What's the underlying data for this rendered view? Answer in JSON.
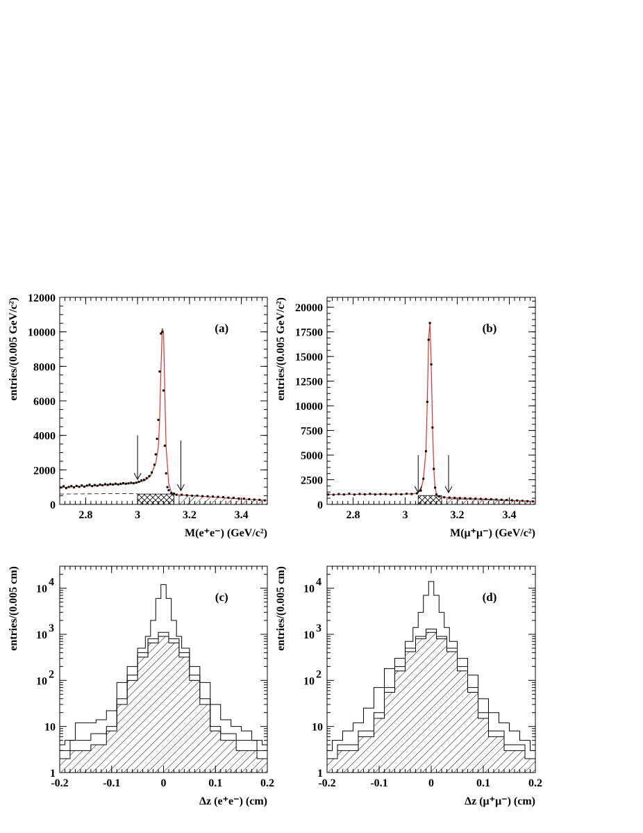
{
  "chart_data": [
    {
      "type": "line",
      "panel_label": "(a)",
      "xlabel": "M(e⁺e⁻) (GeV/c²)",
      "ylabel": "entries/(0.005 GeV/c²)",
      "xlim": [
        2.7,
        3.5
      ],
      "ylim": [
        0,
        12000
      ],
      "xticks": [
        "2.8",
        "3",
        "3.2",
        "3.4"
      ],
      "yticks": [
        "0",
        "2000",
        "4000",
        "6000",
        "8000",
        "10000",
        "12000"
      ],
      "signal_window": [
        3.0,
        3.14
      ],
      "peak_mass": 3.097,
      "background_tail": {
        "x": [
          2.7,
          2.9,
          3.0,
          3.14,
          3.3,
          3.5
        ],
        "y": [
          600,
          620,
          630,
          560,
          420,
          230
        ]
      },
      "fit_curve": {
        "x": [
          2.7,
          2.75,
          2.8,
          2.85,
          2.9,
          2.95,
          3.0,
          3.03,
          3.05,
          3.07,
          3.08,
          3.085,
          3.09,
          3.095,
          3.1,
          3.105,
          3.11,
          3.12,
          3.13,
          3.15,
          3.2,
          3.3,
          3.4,
          3.5
        ],
        "y": [
          980,
          1020,
          1060,
          1100,
          1140,
          1180,
          1250,
          1400,
          1650,
          2400,
          3300,
          4900,
          7800,
          10200,
          10000,
          6500,
          3300,
          1200,
          700,
          560,
          520,
          420,
          310,
          230
        ]
      },
      "points": {
        "x": [
          2.705,
          2.715,
          2.725,
          2.735,
          2.745,
          2.755,
          2.765,
          2.775,
          2.785,
          2.795,
          2.805,
          2.815,
          2.825,
          2.835,
          2.845,
          2.855,
          2.865,
          2.875,
          2.885,
          2.895,
          2.905,
          2.915,
          2.925,
          2.935,
          2.945,
          2.955,
          2.965,
          2.975,
          2.985,
          2.995,
          3.005,
          3.015,
          3.025,
          3.035,
          3.045,
          3.055,
          3.065,
          3.07,
          3.075,
          3.08,
          3.085,
          3.09,
          3.095,
          3.1,
          3.105,
          3.11,
          3.115,
          3.12,
          3.13,
          3.14,
          3.15,
          3.17,
          3.19,
          3.21,
          3.23,
          3.25,
          3.27,
          3.29,
          3.31,
          3.33,
          3.35,
          3.37,
          3.39,
          3.41,
          3.43,
          3.45,
          3.47,
          3.49
        ],
        "y": [
          980,
          1050,
          940,
          1010,
          1060,
          990,
          1070,
          1020,
          1100,
          1030,
          1090,
          1140,
          1060,
          1120,
          1080,
          1150,
          1110,
          1170,
          1130,
          1180,
          1150,
          1200,
          1160,
          1190,
          1230,
          1200,
          1220,
          1250,
          1230,
          1260,
          1310,
          1390,
          1420,
          1520,
          1640,
          1850,
          2300,
          2900,
          3800,
          4900,
          7700,
          9900,
          10000,
          6600,
          3400,
          1800,
          1000,
          820,
          650,
          620,
          560,
          560,
          530,
          500,
          510,
          480,
          470,
          450,
          440,
          420,
          390,
          380,
          340,
          330,
          300,
          280,
          260,
          230
        ]
      }
    },
    {
      "type": "line",
      "panel_label": "(b)",
      "xlabel": "M(μ⁺μ⁻) (GeV/c²)",
      "ylabel": "entries/(0.005 GeV/c²)",
      "xlim": [
        2.7,
        3.5
      ],
      "ylim": [
        0,
        21000
      ],
      "xticks": [
        "2.8",
        "3",
        "3.2",
        "3.4"
      ],
      "yticks": [
        "0",
        "2500",
        "5000",
        "7500",
        "10000",
        "12500",
        "15000",
        "17500",
        "20000"
      ],
      "signal_window": [
        3.05,
        3.14
      ],
      "peak_mass": 3.097,
      "fit_curve": {
        "x": [
          2.7,
          2.8,
          2.9,
          3.0,
          3.04,
          3.06,
          3.07,
          3.08,
          3.085,
          3.09,
          3.095,
          3.1,
          3.105,
          3.11,
          3.115,
          3.12,
          3.13,
          3.15,
          3.2,
          3.3,
          3.4,
          3.5
        ],
        "y": [
          1000,
          1020,
          1030,
          1040,
          1100,
          1400,
          2600,
          5500,
          10500,
          16800,
          18400,
          14300,
          8000,
          3600,
          1700,
          1000,
          800,
          700,
          650,
          550,
          420,
          300
        ]
      },
      "points": {
        "x": [
          2.705,
          2.725,
          2.745,
          2.765,
          2.785,
          2.805,
          2.825,
          2.845,
          2.865,
          2.885,
          2.905,
          2.925,
          2.945,
          2.965,
          2.985,
          3.005,
          3.025,
          3.045,
          3.06,
          3.07,
          3.08,
          3.085,
          3.09,
          3.095,
          3.1,
          3.105,
          3.11,
          3.115,
          3.12,
          3.13,
          3.15,
          3.17,
          3.19,
          3.21,
          3.23,
          3.25,
          3.27,
          3.29,
          3.31,
          3.33,
          3.35,
          3.37,
          3.39,
          3.41,
          3.43,
          3.45,
          3.47,
          3.49
        ],
        "y": [
          1000,
          980,
          1050,
          1010,
          1080,
          1000,
          1060,
          1020,
          1070,
          1010,
          1040,
          1050,
          990,
          1060,
          1020,
          1080,
          1050,
          1120,
          1400,
          2600,
          5400,
          10400,
          16700,
          18400,
          14200,
          7800,
          3600,
          1700,
          1000,
          800,
          720,
          690,
          660,
          640,
          620,
          600,
          580,
          560,
          540,
          520,
          500,
          470,
          440,
          420,
          390,
          360,
          330,
          300
        ]
      }
    },
    {
      "type": "area",
      "panel_label": "(c)",
      "xlabel": "Δz (e⁺e⁻) (cm)",
      "ylabel": "entries/(0.005 cm)",
      "xlim": [
        -0.2,
        0.2
      ],
      "ylog": true,
      "ylim": [
        1,
        30000
      ],
      "xticks": [
        "-0.2",
        "-0.1",
        "0",
        "0.1",
        "0.2"
      ],
      "yticks": [
        {
          "base": "1",
          "exp": ""
        },
        {
          "base": "10",
          "exp": ""
        },
        {
          "base": "10",
          "exp": "2"
        },
        {
          "base": "10",
          "exp": "3"
        },
        {
          "base": "10",
          "exp": "4"
        }
      ],
      "series": [
        {
          "style": "open",
          "x": [
            -0.2,
            -0.18,
            -0.16,
            -0.14,
            -0.12,
            -0.1,
            -0.08,
            -0.06,
            -0.04,
            -0.03,
            -0.02,
            -0.01,
            0,
            0.01,
            0.02,
            0.03,
            0.04,
            0.06,
            0.08,
            0.1,
            0.12,
            0.14,
            0.16,
            0.18,
            0.2
          ],
          "y": [
            4,
            5,
            12,
            12,
            14,
            22,
            90,
            200,
            500,
            900,
            2000,
            6000,
            12000,
            6000,
            2000,
            900,
            500,
            200,
            90,
            30,
            14,
            10,
            8,
            5,
            4
          ]
        },
        {
          "style": "open",
          "x": [
            -0.2,
            -0.16,
            -0.12,
            -0.1,
            -0.08,
            -0.06,
            -0.04,
            -0.02,
            0,
            0.02,
            0.04,
            0.06,
            0.08,
            0.1,
            0.12,
            0.16,
            0.2
          ],
          "y": [
            3,
            5,
            7,
            10,
            40,
            130,
            400,
            800,
            1100,
            800,
            400,
            130,
            40,
            10,
            7,
            5,
            3
          ]
        },
        {
          "style": "hatched",
          "x": [
            -0.2,
            -0.16,
            -0.12,
            -0.1,
            -0.08,
            -0.06,
            -0.04,
            -0.02,
            0,
            0.02,
            0.04,
            0.06,
            0.08,
            0.1,
            0.12,
            0.16,
            0.2
          ],
          "y": [
            2,
            3,
            4,
            8,
            30,
            100,
            320,
            650,
            900,
            650,
            320,
            100,
            30,
            8,
            5,
            3,
            2
          ]
        }
      ]
    },
    {
      "type": "area",
      "panel_label": "(d)",
      "xlabel": "Δz (μ⁺μ⁻) (cm)",
      "ylabel": "entries/(0.005 cm)",
      "xlim": [
        -0.2,
        0.2
      ],
      "ylog": true,
      "ylim": [
        1,
        30000
      ],
      "xticks": [
        "-0.2",
        "-0.1",
        "0",
        "0.1",
        "0.2"
      ],
      "yticks": [
        {
          "base": "1",
          "exp": ""
        },
        {
          "base": "10",
          "exp": ""
        },
        {
          "base": "10",
          "exp": "2"
        },
        {
          "base": "10",
          "exp": "3"
        },
        {
          "base": "10",
          "exp": "4"
        }
      ],
      "series": [
        {
          "style": "open",
          "x": [
            -0.2,
            -0.18,
            -0.16,
            -0.14,
            -0.12,
            -0.1,
            -0.08,
            -0.06,
            -0.04,
            -0.03,
            -0.02,
            -0.01,
            0,
            0.01,
            0.02,
            0.03,
            0.04,
            0.06,
            0.08,
            0.1,
            0.12,
            0.14,
            0.16,
            0.18,
            0.2
          ],
          "y": [
            3,
            5,
            8,
            12,
            25,
            70,
            180,
            300,
            700,
            1400,
            3000,
            7000,
            14000,
            7000,
            3000,
            1400,
            700,
            300,
            130,
            40,
            20,
            12,
            8,
            5,
            3
          ]
        },
        {
          "style": "open",
          "x": [
            -0.2,
            -0.16,
            -0.12,
            -0.1,
            -0.08,
            -0.06,
            -0.04,
            -0.02,
            0,
            0.02,
            0.04,
            0.06,
            0.08,
            0.1,
            0.12,
            0.16,
            0.2
          ],
          "y": [
            2,
            4,
            8,
            20,
            70,
            200,
            500,
            900,
            1300,
            900,
            500,
            200,
            70,
            20,
            8,
            4,
            2
          ]
        },
        {
          "style": "hatched",
          "x": [
            -0.2,
            -0.16,
            -0.12,
            -0.1,
            -0.08,
            -0.06,
            -0.04,
            -0.02,
            0,
            0.02,
            0.04,
            0.06,
            0.08,
            0.1,
            0.12,
            0.16,
            0.2
          ],
          "y": [
            2,
            3,
            6,
            15,
            55,
            160,
            420,
            800,
            1100,
            800,
            420,
            160,
            55,
            15,
            6,
            3,
            2
          ]
        }
      ]
    }
  ]
}
